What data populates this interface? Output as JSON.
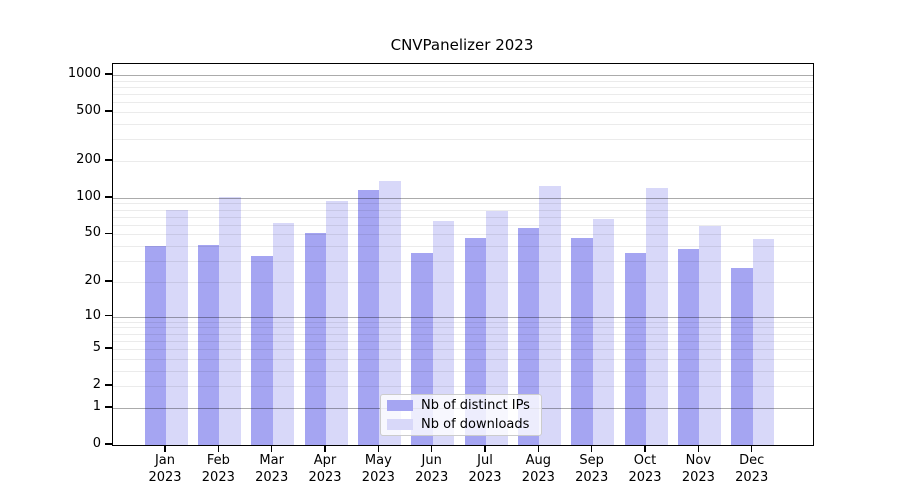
{
  "chart_data": {
    "type": "bar",
    "title": "CNVPanelizer 2023",
    "categories": [
      {
        "month": "Jan",
        "year": "2023"
      },
      {
        "month": "Feb",
        "year": "2023"
      },
      {
        "month": "Mar",
        "year": "2023"
      },
      {
        "month": "Apr",
        "year": "2023"
      },
      {
        "month": "May",
        "year": "2023"
      },
      {
        "month": "Jun",
        "year": "2023"
      },
      {
        "month": "Jul",
        "year": "2023"
      },
      {
        "month": "Aug",
        "year": "2023"
      },
      {
        "month": "Sep",
        "year": "2023"
      },
      {
        "month": "Oct",
        "year": "2023"
      },
      {
        "month": "Nov",
        "year": "2023"
      },
      {
        "month": "Dec",
        "year": "2023"
      }
    ],
    "series": [
      {
        "name": "Nb of distinct IPs",
        "color": "#a5a5f2",
        "values": [
          40,
          41,
          33,
          51,
          116,
          35,
          47,
          57,
          47,
          35,
          38,
          26
        ]
      },
      {
        "name": "Nb of downloads",
        "color": "#d8d8f9",
        "values": [
          80,
          101,
          62,
          94,
          138,
          65,
          78,
          124,
          67,
          121,
          59,
          46
        ]
      }
    ],
    "y_axis": {
      "scale": "log10(value+1)",
      "ticks": [
        0,
        1,
        2,
        5,
        10,
        20,
        50,
        100,
        200,
        500,
        1000
      ],
      "range": [
        0,
        1000
      ]
    },
    "grid": {
      "major_at": [
        1,
        10,
        100,
        1000
      ],
      "minor_at": [
        2,
        3,
        4,
        5,
        6,
        7,
        8,
        9,
        20,
        30,
        40,
        50,
        60,
        70,
        80,
        90,
        200,
        300,
        400,
        500,
        600,
        700,
        800,
        900
      ]
    },
    "legend": {
      "position": "lower center",
      "entries": [
        "Nb of distinct IPs",
        "Nb of downloads"
      ]
    }
  }
}
